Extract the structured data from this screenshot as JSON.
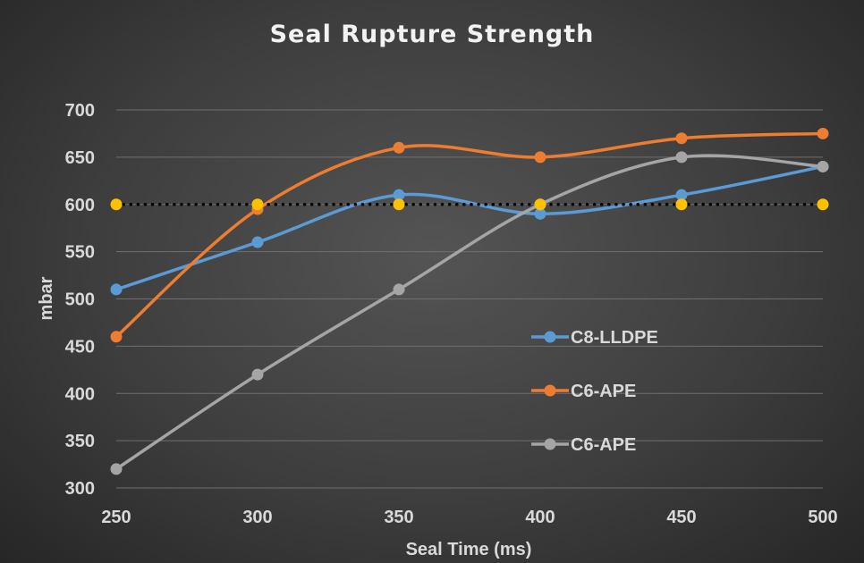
{
  "chart_data": {
    "type": "line",
    "title": "Seal Rupture Strength",
    "xlabel": "Seal Time (ms)",
    "ylabel": "mbar",
    "x": [
      250,
      300,
      350,
      400,
      450,
      500
    ],
    "xlim": [
      250,
      500
    ],
    "ylim": [
      300,
      700
    ],
    "yticks": [
      300,
      350,
      400,
      450,
      500,
      550,
      600,
      650,
      700
    ],
    "grid": true,
    "smooth": true,
    "legend_position": "inside-right",
    "series": [
      {
        "name": "C8-LLDPE",
        "values": [
          510,
          560,
          610,
          590,
          610,
          640
        ],
        "color": "#5b9bd5",
        "line": "solid"
      },
      {
        "name": "C6-APE",
        "values": [
          460,
          595,
          660,
          650,
          670,
          675
        ],
        "color": "#ed7d31",
        "line": "solid"
      },
      {
        "name": "C6-APE",
        "values": [
          320,
          420,
          510,
          600,
          650,
          640
        ],
        "color": "#a5a5a5",
        "line": "solid"
      },
      {
        "name": "",
        "values": [
          600,
          600,
          600,
          600,
          600,
          600
        ],
        "color": "#ffc000",
        "line": "dotted"
      }
    ]
  }
}
